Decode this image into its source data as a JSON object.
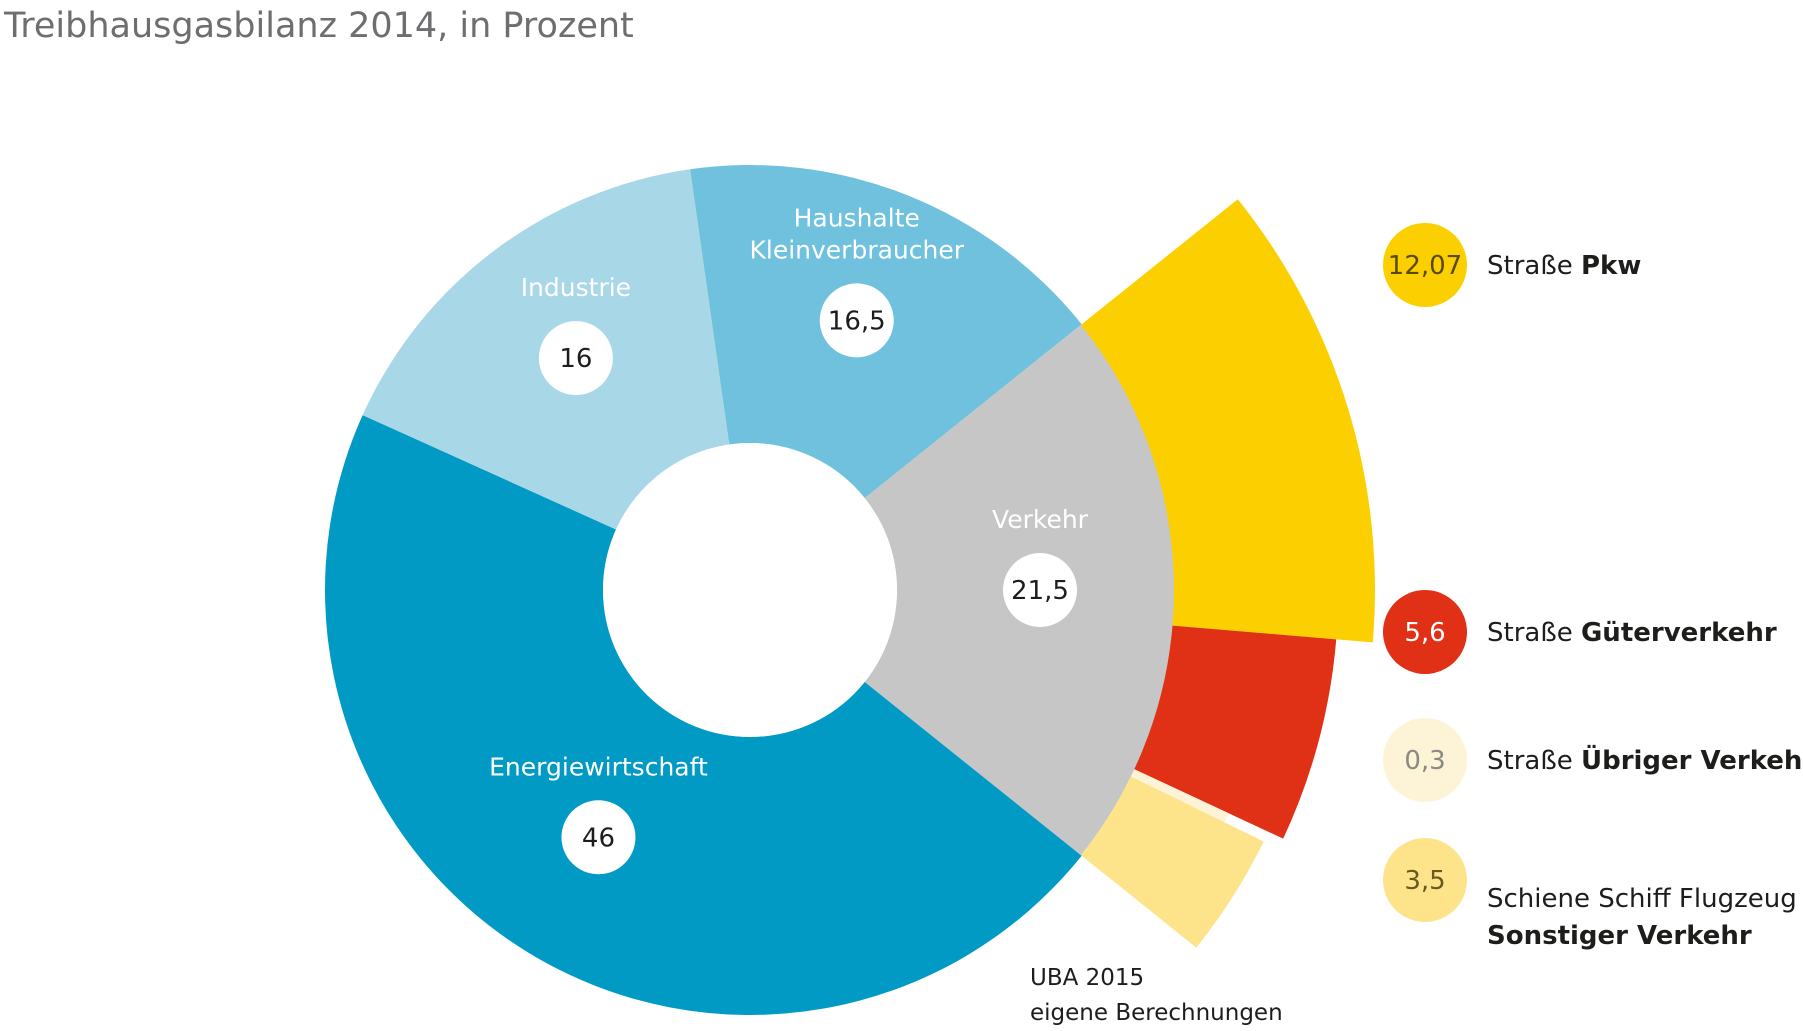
{
  "title": "Treibhausgasbilanz 2014, in Prozent",
  "source": {
    "line1": "UBA 2015",
    "line2": "eigene Berechnungen"
  },
  "colors": {
    "energiewirtschaft": "#009ac5",
    "industrie": "#a8d7e8",
    "haushalte": "#6fc1dd",
    "verkehr": "#c6c6c6",
    "pkw": "#fccf00",
    "gueterverkehr": "#e03016",
    "uebriger": "#fdf3d6",
    "sonstiger": "#fde48a"
  },
  "chart_data": [
    {
      "type": "pie",
      "variant": "donut",
      "title": "Treibhausgasbilanz 2014, in Prozent",
      "unit": "Prozent",
      "slices": [
        {
          "label": "Energiewirtschaft",
          "value": 46,
          "display": "46"
        },
        {
          "label": "Industrie",
          "value": 16,
          "display": "16"
        },
        {
          "label": "Haushalte Kleinverbraucher",
          "label_lines": [
            "Haushalte",
            "Kleinverbraucher"
          ],
          "value": 16.5,
          "display": "16,5"
        },
        {
          "label": "Verkehr",
          "value": 21.5,
          "display": "21,5"
        }
      ]
    },
    {
      "type": "pie",
      "variant": "exploded-sector",
      "parent": "Verkehr",
      "unit": "Prozent",
      "slices": [
        {
          "label": "Straße Pkw",
          "prefix": "Straße",
          "bold": "Pkw",
          "value": 12.07,
          "display": "12,07"
        },
        {
          "label": "Straße Güterverkehr",
          "prefix": "Straße",
          "bold": "Güterverkehr",
          "value": 5.6,
          "display": "5,6"
        },
        {
          "label": "Straße Übriger Verkehr",
          "prefix": "Straße",
          "bold": "Übriger Verkehr",
          "value": 0.3,
          "display": "0,3"
        },
        {
          "label": "Schiene Schiff Flugzeug Sonstiger Verkehr",
          "prefix": "Schiene Schiff Flugzeug",
          "bold": "Sonstiger Verkehr",
          "value": 3.5,
          "display": "3,5"
        }
      ]
    }
  ]
}
